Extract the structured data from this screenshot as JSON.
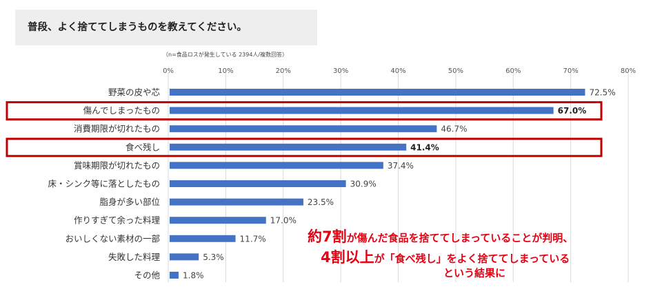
{
  "header": {
    "title": "普段、よく捨ててしまうものを教えてください。",
    "note": "（n=食品ロスが発生している 2394人/複数回答）"
  },
  "callout": {
    "l1_big": "約7割",
    "l1_rest": "が傷んだ食品を捨ててしまっていることが判明、",
    "l2_big": "4割以上",
    "l2_rest": "が「食べ残し」をよく捨ててしまっている",
    "l3": "という結果に"
  },
  "colors": {
    "bar": "#4472c4",
    "highlight": "#c00000",
    "callout_text": "#e60012"
  },
  "chart_data": {
    "type": "bar",
    "orientation": "horizontal",
    "categories": [
      "野菜の皮や芯",
      "傷んでしまったもの",
      "消費期限が切れたもの",
      "食べ残し",
      "賞味期限が切れたもの",
      "床・シンク等に落としたもの",
      "脂身が多い部位",
      "作りすぎて余った料理",
      "おいしくない素材の一部",
      "失敗した料理",
      "その他"
    ],
    "values": [
      72.5,
      67.0,
      46.7,
      41.4,
      37.4,
      30.9,
      23.5,
      17.0,
      11.7,
      5.3,
      1.8
    ],
    "value_labels": [
      "72.5%",
      "67.0%",
      "46.7%",
      "41.4%",
      "37.4%",
      "30.9%",
      "23.5%",
      "17.0%",
      "11.7%",
      "5.3%",
      "1.8%"
    ],
    "highlighted": [
      "傷んでしまったもの",
      "食べ残し"
    ],
    "xlim": [
      0,
      80
    ],
    "x_ticks": [
      0,
      10,
      20,
      30,
      40,
      50,
      60,
      70,
      80
    ],
    "x_tick_labels": [
      "0%",
      "10%",
      "20%",
      "30%",
      "40%",
      "50%",
      "60%",
      "70%",
      "80%"
    ],
    "grid": true,
    "legend": "none"
  }
}
